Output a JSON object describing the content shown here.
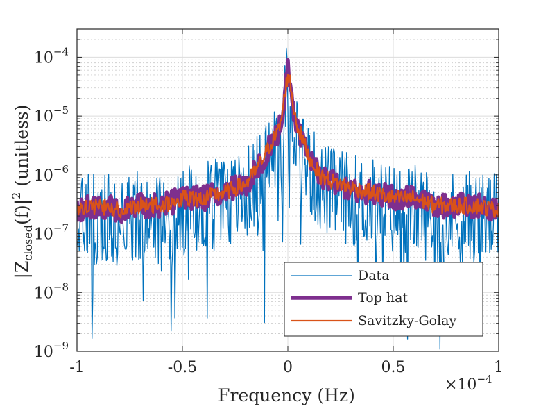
{
  "chart_data": {
    "type": "line",
    "xlabel": "Frequency (Hz)",
    "ylabel": "|Z_closed(f)|² (unitless)",
    "ylabel_parts": {
      "prefix": "|Z",
      "subscript": "closed",
      "middle": "(f)|",
      "power": "2",
      "suffix": " (unitless)"
    },
    "x_multiplier_label": {
      "base": "×10",
      "exponent": "−4"
    },
    "xlim": [
      -0.0001,
      0.0001
    ],
    "ylim": [
      1e-09,
      0.0003
    ],
    "yscale": "log",
    "grid": true,
    "minor_grid": true,
    "legend_position": "bottom-right",
    "x_ticks": [
      {
        "value": -0.0001,
        "label": "-1"
      },
      {
        "value": -5e-05,
        "label": "-0.5"
      },
      {
        "value": 0,
        "label": "0"
      },
      {
        "value": 5e-05,
        "label": "0.5"
      },
      {
        "value": 0.0001,
        "label": "1"
      }
    ],
    "y_ticks": [
      {
        "value": 1e-09,
        "base": "10",
        "exponent": "−9"
      },
      {
        "value": 1e-08,
        "base": "10",
        "exponent": "−8"
      },
      {
        "value": 1e-07,
        "base": "10",
        "exponent": "−7"
      },
      {
        "value": 1e-06,
        "base": "10",
        "exponent": "−6"
      },
      {
        "value": 1e-05,
        "base": "10",
        "exponent": "−5"
      },
      {
        "value": 0.0001,
        "base": "10",
        "exponent": "−4"
      }
    ],
    "series": [
      {
        "name": "Data",
        "color": "#0072BD",
        "line_width": 1.3,
        "x": [
          -0.0001,
          -9e-05,
          -8e-05,
          -7e-05,
          -6e-05,
          -5e-05,
          -4e-05,
          -3e-05,
          -2e-05,
          -1.5e-05,
          -1e-05,
          -7e-06,
          -5e-06,
          -3e-06,
          -1e-06,
          0,
          1e-06,
          3e-06,
          5e-06,
          7e-06,
          1e-05,
          1.5e-05,
          2e-05,
          3e-05,
          4e-05,
          5e-05,
          6e-05,
          7e-05,
          8e-05,
          9e-05,
          0.0001
        ],
        "y": [
          2.5e-07,
          3e-07,
          2.5e-07,
          3e-07,
          3e-07,
          4e-07,
          4e-07,
          5e-07,
          7e-07,
          1.2e-06,
          2.5e-06,
          4e-06,
          5e-06,
          9e-06,
          3e-05,
          0.0001,
          4e-05,
          1.2e-05,
          6e-06,
          4e-06,
          2e-06,
          1e-06,
          8e-07,
          6e-07,
          5e-07,
          4e-07,
          4e-07,
          3e-07,
          3e-07,
          3e-07,
          2.5e-07
        ],
        "noise": "high"
      },
      {
        "name": "Top hat",
        "color": "#7E2F8E",
        "line_width": 5.5,
        "x": [
          -0.0001,
          -9e-05,
          -8e-05,
          -7e-05,
          -6e-05,
          -5e-05,
          -4e-05,
          -3e-05,
          -2e-05,
          -1.5e-05,
          -1e-05,
          -7e-06,
          -5e-06,
          -3e-06,
          -1e-06,
          0,
          1e-06,
          3e-06,
          5e-06,
          7e-06,
          1e-05,
          1.5e-05,
          2e-05,
          3e-05,
          4e-05,
          5e-05,
          6e-05,
          7e-05,
          8e-05,
          9e-05,
          0.0001
        ],
        "y": [
          2.5e-07,
          3e-07,
          2.5e-07,
          3e-07,
          3e-07,
          4e-07,
          4e-07,
          5e-07,
          7e-07,
          1.2e-06,
          2.5e-06,
          4e-06,
          5e-06,
          9e-06,
          3e-05,
          6e-05,
          4e-05,
          1.2e-05,
          6e-06,
          4e-06,
          2e-06,
          1e-06,
          8e-07,
          6e-07,
          5e-07,
          4e-07,
          4e-07,
          3e-07,
          3e-07,
          3e-07,
          2.5e-07
        ],
        "noise": "medium"
      },
      {
        "name": "Savitzky-Golay",
        "color": "#D95319",
        "line_width": 2.3,
        "x": [
          -0.0001,
          -9e-05,
          -8e-05,
          -7e-05,
          -6e-05,
          -5e-05,
          -4e-05,
          -3e-05,
          -2e-05,
          -1.5e-05,
          -1e-05,
          -7e-06,
          -5e-06,
          -3e-06,
          -1e-06,
          0,
          1e-06,
          3e-06,
          5e-06,
          7e-06,
          1e-05,
          1.5e-05,
          2e-05,
          3e-05,
          4e-05,
          5e-05,
          6e-05,
          7e-05,
          8e-05,
          9e-05,
          0.0001
        ],
        "y": [
          2.5e-07,
          3e-07,
          2.5e-07,
          3e-07,
          3e-07,
          4e-07,
          4e-07,
          5e-07,
          7e-07,
          1.2e-06,
          2.5e-06,
          4e-06,
          5e-06,
          9e-06,
          3e-05,
          5e-05,
          4e-05,
          1.2e-05,
          6e-06,
          4e-06,
          2e-06,
          1e-06,
          8e-07,
          6e-07,
          5e-07,
          4e-07,
          4e-07,
          3e-07,
          3e-07,
          3e-07,
          2.5e-07
        ],
        "noise": "low"
      }
    ]
  }
}
